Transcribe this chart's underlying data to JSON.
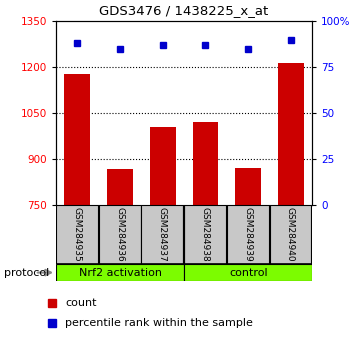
{
  "title": "GDS3476 / 1438225_x_at",
  "samples": [
    "GSM284935",
    "GSM284936",
    "GSM284937",
    "GSM284938",
    "GSM284939",
    "GSM284940"
  ],
  "count_values": [
    1178,
    870,
    1005,
    1020,
    872,
    1215
  ],
  "percentile_values": [
    88,
    85,
    87,
    87,
    85,
    90
  ],
  "ylim_left": [
    750,
    1350
  ],
  "ylim_right": [
    0,
    100
  ],
  "yticks_left": [
    750,
    900,
    1050,
    1200,
    1350
  ],
  "yticks_right": [
    0,
    25,
    50,
    75,
    100
  ],
  "group1_label": "Nrf2 activation",
  "group2_label": "control",
  "group_color": "#7CFC00",
  "bar_color": "#cc0000",
  "dot_color": "#0000cc",
  "bar_width": 0.6,
  "sample_box_color": "#c8c8c8",
  "protocol_label": "protocol",
  "legend_count": "count",
  "legend_percentile": "percentile rank within the sample",
  "grid_lines": [
    900,
    1050,
    1200
  ],
  "background_color": "#ffffff"
}
